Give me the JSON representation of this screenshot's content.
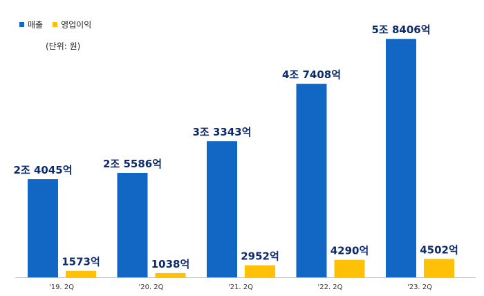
{
  "chart_data": {
    "type": "bar",
    "categories": [
      "'19. 2Q",
      "'20. 2Q",
      "'21. 2Q",
      "'22. 2Q",
      "'23. 2Q"
    ],
    "series": [
      {
        "name": "매출",
        "color": "#1266c4",
        "values": [
          24045,
          25586,
          33343,
          47408,
          58406
        ],
        "labels": [
          "2조 4045억",
          "2조 5586억",
          "3조 3343억",
          "4조 7408억",
          "5조 8406억"
        ]
      },
      {
        "name": "영업이익",
        "color": "#ffc107",
        "values": [
          1573,
          1038,
          2952,
          4290,
          4502
        ],
        "labels": [
          "1573억",
          "1038억",
          "2952억",
          "4290억",
          "4502억"
        ]
      }
    ],
    "unit_note": "(단위: 원)",
    "ylim": [
      0,
      62000
    ],
    "grid": false,
    "legend_position": "top-left",
    "label_color": "#0d2a6b"
  }
}
